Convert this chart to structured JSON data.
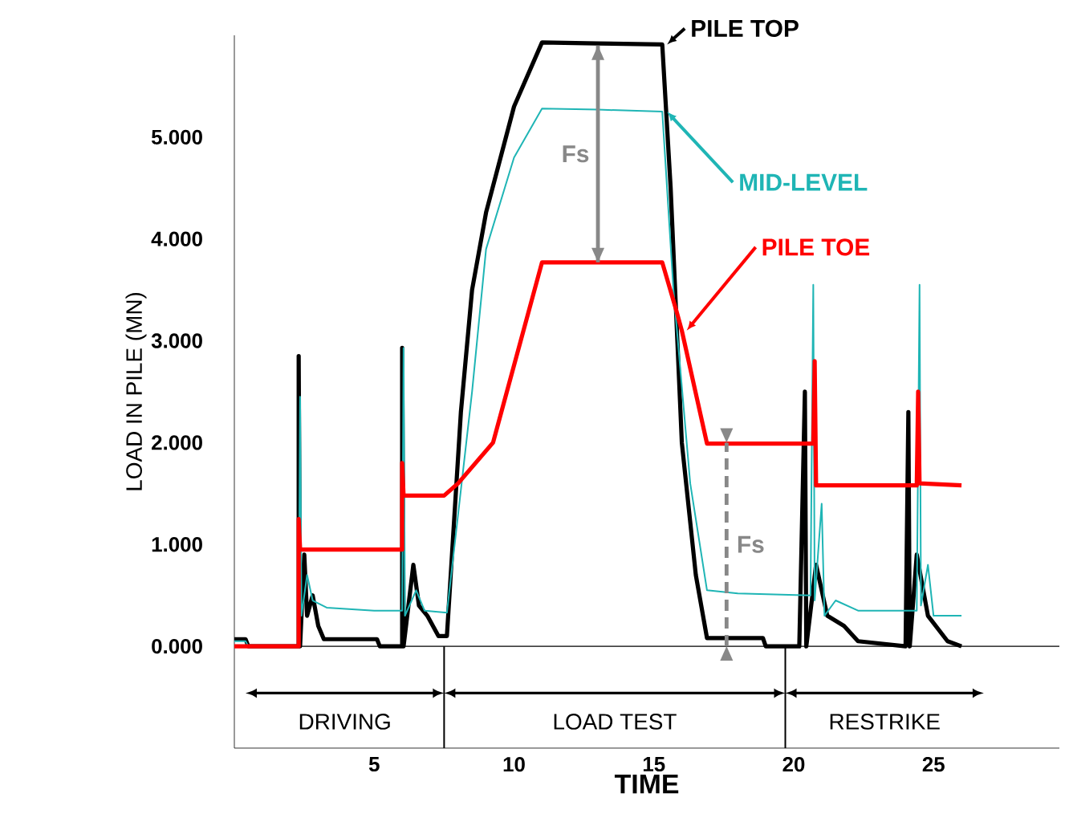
{
  "chart_data": {
    "type": "line",
    "xlabel": "TIME",
    "ylabel": "LOAD IN PILE (MN)",
    "xlim": [
      0,
      29.5
    ],
    "ylim": [
      -1,
      6
    ],
    "xticks": [
      5,
      10,
      15,
      20,
      25
    ],
    "yticks": [
      {
        "value": 0,
        "label": "0.000"
      },
      {
        "value": 1,
        "label": "1.000"
      },
      {
        "value": 2,
        "label": "2.000"
      },
      {
        "value": 3,
        "label": "3.000"
      },
      {
        "value": 4,
        "label": "4.000"
      },
      {
        "value": 5,
        "label": "5.000"
      }
    ],
    "series": [
      {
        "name": "PILE TOP",
        "color": "#000000",
        "x": [
          0,
          0.4,
          0.5,
          2.3,
          2.3,
          2.35,
          2.5,
          2.6,
          2.8,
          3.0,
          3.2,
          5.1,
          5.2,
          6.0,
          6.0,
          6.05,
          6.4,
          6.6,
          6.9,
          7.3,
          7.6,
          8.1,
          8.5,
          9.0,
          10.0,
          11.0,
          13.0,
          15.3,
          15.6,
          16.0,
          16.5,
          16.9,
          18.9,
          19.0,
          20.2,
          20.4,
          20.45,
          20.8,
          21.2,
          21.8,
          22.3,
          24.0,
          24.1,
          24.15,
          24.4,
          24.8,
          25.5,
          26.0
        ],
        "values": [
          0.07,
          0.07,
          0,
          0,
          2.85,
          0,
          0.9,
          0.3,
          0.5,
          0.2,
          0.07,
          0.07,
          0,
          0,
          2.93,
          0,
          0.8,
          0.4,
          0.3,
          0.1,
          0.1,
          2.3,
          3.5,
          4.26,
          5.3,
          5.93,
          5.92,
          5.91,
          4.5,
          2.0,
          0.7,
          0.08,
          0.08,
          0,
          0,
          2.5,
          0,
          0.8,
          0.3,
          0.2,
          0.05,
          0,
          2.3,
          0,
          0.9,
          0.3,
          0.05,
          0
        ]
      },
      {
        "name": "MID-LEVEL",
        "color": "#1fb5b5",
        "x": [
          0,
          0.4,
          0.5,
          2.3,
          2.35,
          2.4,
          2.6,
          2.8,
          3.3,
          5.0,
          6.0,
          6.05,
          6.1,
          6.5,
          6.8,
          7.6,
          8.5,
          9.0,
          10.0,
          11.0,
          13.0,
          15.3,
          15.7,
          16.3,
          16.9,
          18.0,
          20.6,
          20.7,
          20.75,
          21.0,
          21.1,
          21.5,
          22.3,
          24.4,
          24.5,
          24.55,
          24.8,
          25.0,
          26.0
        ],
        "values": [
          0.05,
          0.05,
          0,
          0,
          2.45,
          0.3,
          0.7,
          0.45,
          0.38,
          0.35,
          0.35,
          2.93,
          0.3,
          0.55,
          0.35,
          0.33,
          2.5,
          3.9,
          4.8,
          5.28,
          5.27,
          5.25,
          3.5,
          1.6,
          0.55,
          0.52,
          0.5,
          3.55,
          0.45,
          1.4,
          0.3,
          0.45,
          0.35,
          0.35,
          3.55,
          0.4,
          0.8,
          0.3,
          0.3
        ]
      },
      {
        "name": "PILE TOE",
        "color": "#ff0000",
        "x": [
          0,
          2.3,
          2.3,
          2.35,
          6.0,
          6.0,
          6.05,
          7.5,
          8.0,
          9.25,
          11.0,
          15.3,
          15.8,
          16.0,
          16.9,
          20.7,
          20.75,
          20.8,
          24.4,
          24.45,
          24.5,
          26.0
        ],
        "values": [
          0,
          0,
          1.25,
          0.95,
          0.95,
          1.8,
          1.48,
          1.48,
          1.6,
          2.0,
          3.77,
          3.77,
          3.3,
          3.1,
          1.99,
          1.99,
          2.8,
          1.58,
          1.58,
          2.5,
          1.6,
          1.58
        ]
      },
      {
        "color": "#888888",
        "x": [
          13.0,
          13.0
        ],
        "values": [
          5.9,
          3.77
        ]
      },
      {
        "color": "#888888",
        "x": [
          17.6,
          17.6
        ],
        "values": [
          0,
          2.0
        ],
        "line_style": "dashed"
      }
    ],
    "annotations": [
      "Fs",
      "Fs",
      "DRIVING",
      "LOAD TEST",
      "RESTRIKE"
    ],
    "ref_lines": [
      {
        "axis": "y",
        "value": 0
      }
    ]
  }
}
